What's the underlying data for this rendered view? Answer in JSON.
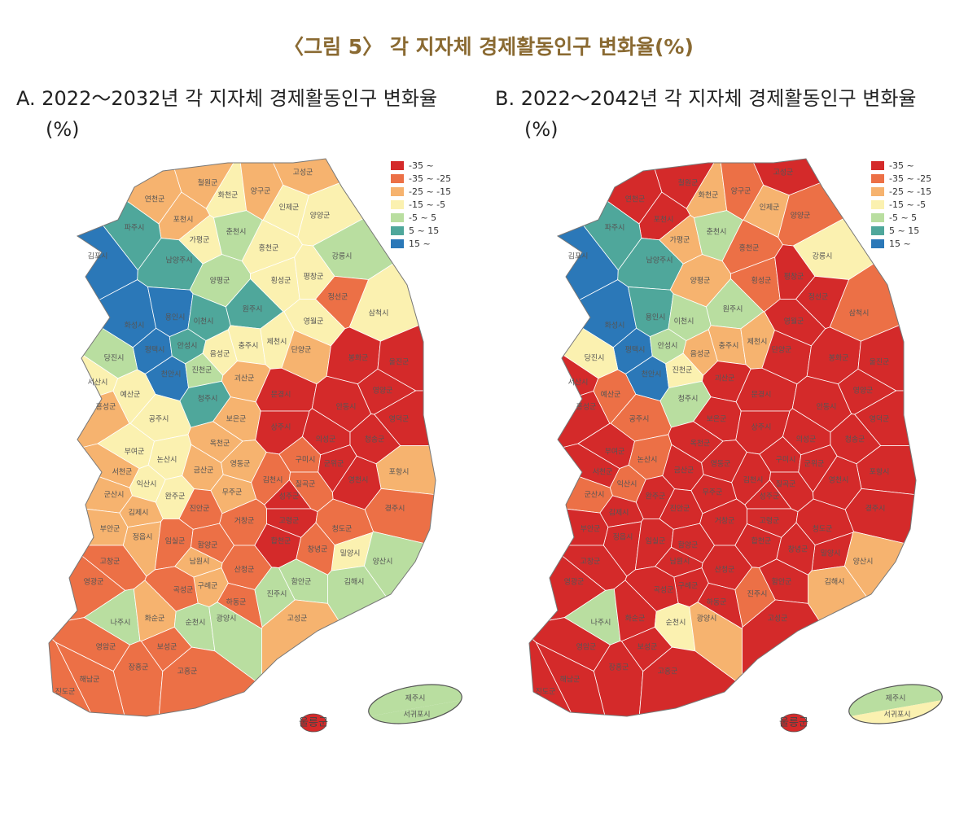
{
  "title": "〈그림 5〉 각 지자체 경제활동인구 변화율(%)",
  "panels": [
    {
      "title": "A. 2022～2032년 각 지자체 경제활동인구 변화율(%)"
    },
    {
      "title": "B. 2022～2042년 각 지자체 경제활동인구 변화율(%)"
    }
  ],
  "legend": [
    {
      "label": "-35 ~",
      "color": "#d42a2a"
    },
    {
      "label": "-35 ~ -25",
      "color": "#ec7046"
    },
    {
      "label": "-25 ~ -15",
      "color": "#f6b36f"
    },
    {
      "label": "-15 ~ -5",
      "color": "#fbf1b0"
    },
    {
      "label": "-5 ~ 5",
      "color": "#b9dea0"
    },
    {
      "label": "5 ~ 15",
      "color": "#4fa79b"
    },
    {
      "label": "15 ~",
      "color": "#2b78b8"
    }
  ],
  "regions": [
    {
      "name": "철원군",
      "a": 2,
      "b": 0
    },
    {
      "name": "화천군",
      "a": 3,
      "b": 2
    },
    {
      "name": "양구군",
      "a": 2,
      "b": 1
    },
    {
      "name": "인제군",
      "a": 3,
      "b": 2
    },
    {
      "name": "고성군",
      "a": 2,
      "b": 0
    },
    {
      "name": "양양군",
      "a": 3,
      "b": 1
    },
    {
      "name": "연천군",
      "a": 2,
      "b": 0
    },
    {
      "name": "포천시",
      "a": 2,
      "b": 0
    },
    {
      "name": "파주시",
      "a": 5,
      "b": 5
    },
    {
      "name": "가평군",
      "a": 3,
      "b": 2
    },
    {
      "name": "춘천시",
      "a": 4,
      "b": 4
    },
    {
      "name": "홍천군",
      "a": 3,
      "b": 1
    },
    {
      "name": "강릉시",
      "a": 4,
      "b": 3
    },
    {
      "name": "김포시",
      "a": 6,
      "b": 6
    },
    {
      "name": "남양주시",
      "a": 5,
      "b": 5
    },
    {
      "name": "양평군",
      "a": 4,
      "b": 2
    },
    {
      "name": "횡성군",
      "a": 3,
      "b": 1
    },
    {
      "name": "평창군",
      "a": 3,
      "b": 0
    },
    {
      "name": "정선군",
      "a": 1,
      "b": 0
    },
    {
      "name": "삼척시",
      "a": 3,
      "b": 1
    },
    {
      "name": "원주시",
      "a": 5,
      "b": 4
    },
    {
      "name": "영월군",
      "a": 3,
      "b": 0
    },
    {
      "name": "화성시",
      "a": 6,
      "b": 6
    },
    {
      "name": "용인시",
      "a": 6,
      "b": 5
    },
    {
      "name": "이천시",
      "a": 5,
      "b": 4
    },
    {
      "name": "평택시",
      "a": 6,
      "b": 6
    },
    {
      "name": "안성시",
      "a": 5,
      "b": 4
    },
    {
      "name": "충주시",
      "a": 3,
      "b": 2
    },
    {
      "name": "제천시",
      "a": 3,
      "b": 2
    },
    {
      "name": "단양군",
      "a": 2,
      "b": 0
    },
    {
      "name": "봉화군",
      "a": 0,
      "b": 0
    },
    {
      "name": "울진군",
      "a": 0,
      "b": 0
    },
    {
      "name": "당진시",
      "a": 4,
      "b": 3
    },
    {
      "name": "서산시",
      "a": 3,
      "b": 0
    },
    {
      "name": "천안시",
      "a": 6,
      "b": 6
    },
    {
      "name": "음성군",
      "a": 3,
      "b": 2
    },
    {
      "name": "진천군",
      "a": 4,
      "b": 3
    },
    {
      "name": "괴산군",
      "a": 2,
      "b": 0
    },
    {
      "name": "문경시",
      "a": 0,
      "b": 0
    },
    {
      "name": "안동시",
      "a": 0,
      "b": 0
    },
    {
      "name": "영양군",
      "a": 0,
      "b": 0
    },
    {
      "name": "영덕군",
      "a": 0,
      "b": 0
    },
    {
      "name": "홍성군",
      "a": 2,
      "b": 0
    },
    {
      "name": "예산군",
      "a": 3,
      "b": 1
    },
    {
      "name": "청주시",
      "a": 5,
      "b": 4
    },
    {
      "name": "보은군",
      "a": 2,
      "b": 0
    },
    {
      "name": "상주시",
      "a": 0,
      "b": 0
    },
    {
      "name": "의성군",
      "a": 0,
      "b": 0
    },
    {
      "name": "청송군",
      "a": 0,
      "b": 0
    },
    {
      "name": "공주시",
      "a": 3,
      "b": 1
    },
    {
      "name": "부여군",
      "a": 3,
      "b": 0
    },
    {
      "name": "옥천군",
      "a": 2,
      "b": 0
    },
    {
      "name": "영동군",
      "a": 2,
      "b": 0
    },
    {
      "name": "구미시",
      "a": 1,
      "b": 0
    },
    {
      "name": "군위군",
      "a": 0,
      "b": 0
    },
    {
      "name": "포항시",
      "a": 2,
      "b": 0
    },
    {
      "name": "논산시",
      "a": 3,
      "b": 1
    },
    {
      "name": "서천군",
      "a": 2,
      "b": 0
    },
    {
      "name": "금산군",
      "a": 2,
      "b": 0
    },
    {
      "name": "김천시",
      "a": 1,
      "b": 0
    },
    {
      "name": "칠곡군",
      "a": 1,
      "b": 0
    },
    {
      "name": "영천시",
      "a": 0,
      "b": 0
    },
    {
      "name": "익산시",
      "a": 3,
      "b": 1
    },
    {
      "name": "군산시",
      "a": 2,
      "b": 1
    },
    {
      "name": "완주군",
      "a": 3,
      "b": 0
    },
    {
      "name": "무주군",
      "a": 2,
      "b": 0
    },
    {
      "name": "성주군",
      "a": 0,
      "b": 0
    },
    {
      "name": "경주시",
      "a": 1,
      "b": 0
    },
    {
      "name": "김제시",
      "a": 2,
      "b": 0
    },
    {
      "name": "진안군",
      "a": 1,
      "b": 0
    },
    {
      "name": "거창군",
      "a": 1,
      "b": 0
    },
    {
      "name": "고령군",
      "a": 0,
      "b": 0
    },
    {
      "name": "청도군",
      "a": 1,
      "b": 0
    },
    {
      "name": "정읍시",
      "a": 2,
      "b": 0
    },
    {
      "name": "부안군",
      "a": 2,
      "b": 0
    },
    {
      "name": "임실군",
      "a": 1,
      "b": 0
    },
    {
      "name": "함양군",
      "a": 1,
      "b": 0
    },
    {
      "name": "합천군",
      "a": 0,
      "b": 0
    },
    {
      "name": "밀양시",
      "a": 3,
      "b": 0
    },
    {
      "name": "창녕군",
      "a": 1,
      "b": 0
    },
    {
      "name": "고창군",
      "a": 1,
      "b": 0
    },
    {
      "name": "남원시",
      "a": 2,
      "b": 0
    },
    {
      "name": "산청군",
      "a": 1,
      "b": 0
    },
    {
      "name": "양산시",
      "a": 4,
      "b": 2
    },
    {
      "name": "김해시",
      "a": 4,
      "b": 2
    },
    {
      "name": "함안군",
      "a": 4,
      "b": 0
    },
    {
      "name": "영광군",
      "a": 1,
      "b": 0
    },
    {
      "name": "구례군",
      "a": 2,
      "b": 0
    },
    {
      "name": "곡성군",
      "a": 1,
      "b": 0
    },
    {
      "name": "하동군",
      "a": 1,
      "b": 0
    },
    {
      "name": "진주시",
      "a": 4,
      "b": 1
    },
    {
      "name": "고성군",
      "a": 2,
      "b": 0
    },
    {
      "name": "나주시",
      "a": 4,
      "b": 4
    },
    {
      "name": "화순군",
      "a": 2,
      "b": 0
    },
    {
      "name": "순천시",
      "a": 4,
      "b": 3
    },
    {
      "name": "광양시",
      "a": 4,
      "b": 2
    },
    {
      "name": "영암군",
      "a": 1,
      "b": 0
    },
    {
      "name": "보성군",
      "a": 1,
      "b": 0
    },
    {
      "name": "장흥군",
      "a": 1,
      "b": 0
    },
    {
      "name": "해남군",
      "a": 1,
      "b": 0
    },
    {
      "name": "고흥군",
      "a": 1,
      "b": 0
    },
    {
      "name": "진도군",
      "a": 1,
      "b": 0
    }
  ],
  "islands": [
    {
      "name": "제주시",
      "a": 4,
      "b": 4
    },
    {
      "name": "서귀포시",
      "a": 4,
      "b": 3
    },
    {
      "name": "울릉군",
      "a": 0,
      "b": 0
    }
  ]
}
